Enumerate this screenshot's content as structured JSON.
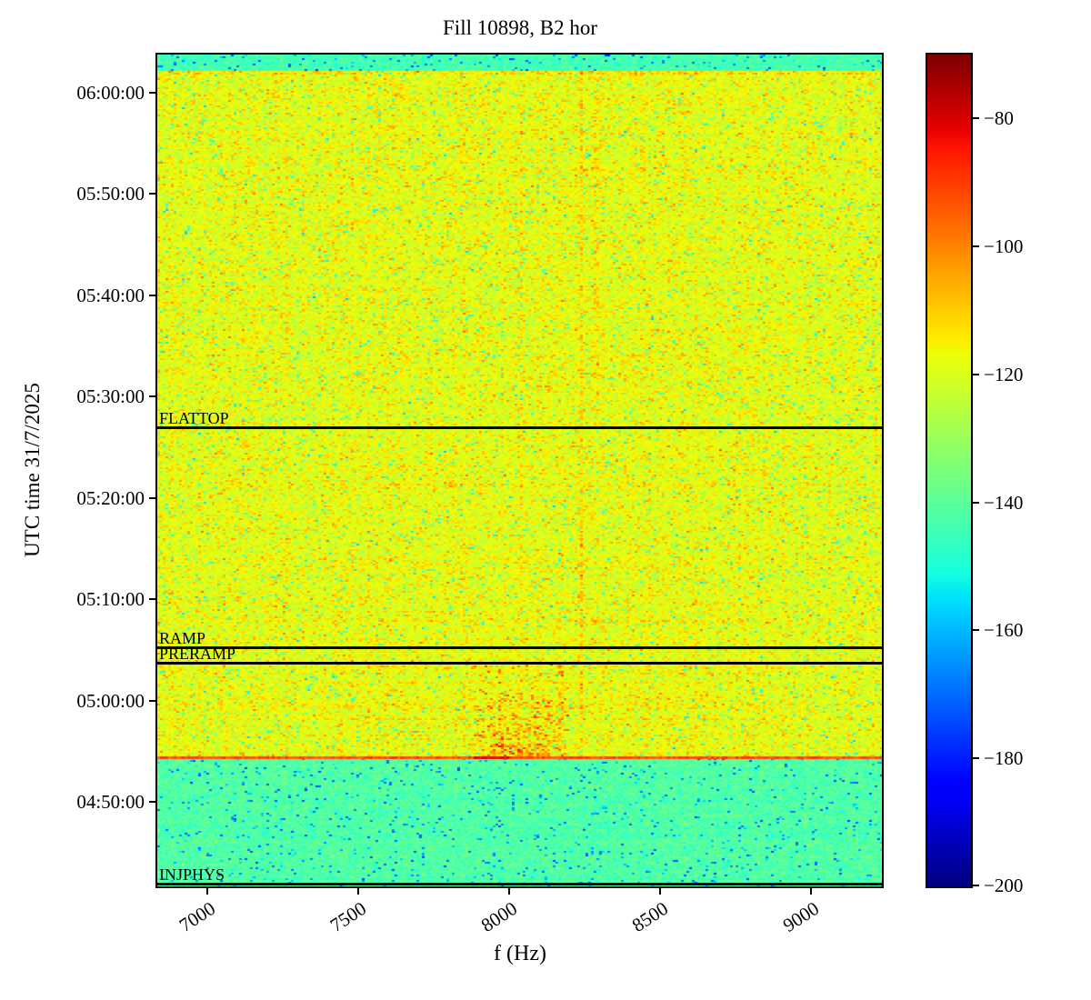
{
  "figure": {
    "title": "Fill 10898, B2 hor",
    "xlabel": "f (Hz)",
    "ylabel": "UTC time 31/7/2025",
    "background": "#ffffff",
    "annotation_line_color": "#000000"
  },
  "chart_data": {
    "type": "heatmap",
    "subtype": "spectrogram",
    "title": "Fill 10898, B2 hor",
    "xlabel": "f (Hz)",
    "ylabel": "UTC time 31/7/2025",
    "colormap": "jet",
    "x_ticks": [
      7000,
      7500,
      8000,
      8500,
      9000
    ],
    "x_tick_labels": [
      "7000",
      "7500",
      "8000",
      "8500",
      "9000"
    ],
    "x_extent_hz": [
      6835,
      9235
    ],
    "y_tick_labels": [
      "06:00:00",
      "05:50:00",
      "05:40:00",
      "05:30:00",
      "05:20:00",
      "05:10:00",
      "05:00:00",
      "04:50:00"
    ],
    "y_extent_utc": [
      "04:41:42",
      "06:03:46"
    ],
    "colorbar": {
      "vmin": -200,
      "vmax": -70,
      "ticks": [
        -80,
        -100,
        -120,
        -140,
        -160,
        -180,
        -200
      ],
      "tick_labels": [
        "−80",
        "−100",
        "−120",
        "−140",
        "−160",
        "−180",
        "−200"
      ]
    },
    "annotations": [
      {
        "label": "FLATTOP",
        "time_utc": "05:27:00"
      },
      {
        "label": "RAMP",
        "time_utc": "05:05:18"
      },
      {
        "label": "PRERAMP",
        "time_utc": "05:03:46"
      },
      {
        "label": "INJPHYS",
        "time_utc": "04:41:58"
      }
    ],
    "regions": [
      {
        "name": "top-cyan-band",
        "time_utc": [
          "06:02:04",
          "06:03:46"
        ],
        "mean_db": -144,
        "sigma_db": 3.0
      },
      {
        "name": "main-spectrum",
        "time_utc": [
          "04:54:26",
          "06:02:04"
        ],
        "mean_db": -119,
        "sigma_db": 4.5
      },
      {
        "name": "injection-plateau",
        "time_utc": [
          "04:41:42",
          "04:54:26"
        ],
        "mean_db": -142,
        "sigma_db": 3.2
      }
    ],
    "transition_row": {
      "time_utc": "04:54:26",
      "mean_db": -93,
      "dark_segment_hz": [
        7880,
        8000
      ],
      "dark_db": -79
    },
    "spectral_lines": [
      {
        "f_hz": 8040,
        "boost_db": 5,
        "extent": "full"
      },
      {
        "f_hz": 8240,
        "boost_db": 8,
        "extent": "full"
      },
      {
        "f_hz": 8290,
        "boost_db": 5,
        "extent": "upper"
      },
      {
        "f_hz": 8440,
        "boost_db": 3,
        "extent": "upper"
      },
      {
        "f_hz": 8170,
        "boost_db": 4,
        "extent": "lower"
      }
    ],
    "injection_burst": {
      "f_range_hz": [
        7880,
        8200
      ],
      "core_f_range_hz": [
        7940,
        8130
      ],
      "time_range_utc": [
        "04:54:26",
        "05:03:46"
      ],
      "max_boost_db": 22
    }
  }
}
